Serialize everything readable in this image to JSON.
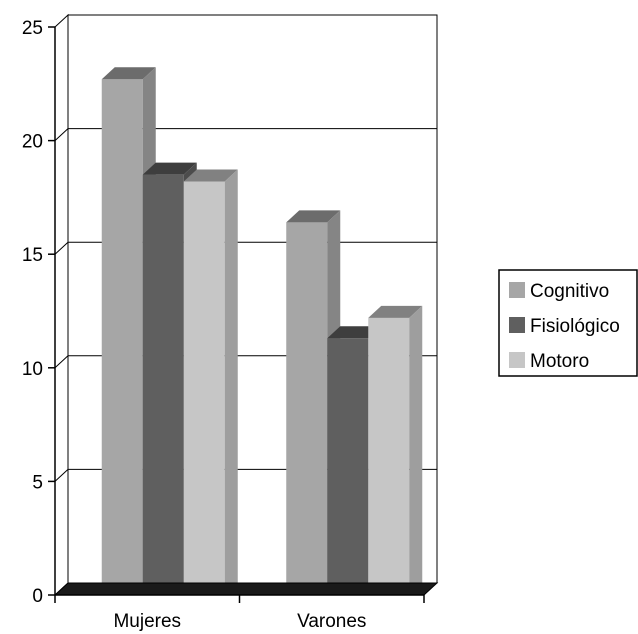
{
  "chart_data": {
    "type": "bar",
    "categories": [
      "Mujeres",
      "Varones"
    ],
    "series": [
      {
        "name": "Cognitivo",
        "values": [
          22.7,
          16.4
        ],
        "color": "#a6a6a6"
      },
      {
        "name": "Fisiológico",
        "values": [
          18.5,
          11.3
        ],
        "color": "#5f5f5f"
      },
      {
        "name": "Motoro",
        "values": [
          18.2,
          12.2
        ],
        "color": "#c6c6c6"
      }
    ],
    "yticks": [
      "0",
      "5",
      "10",
      "15",
      "20",
      "25"
    ],
    "ylim": [
      0,
      25
    ],
    "grid": true,
    "legend_position": "right",
    "style": "3d-clustered-bar"
  }
}
